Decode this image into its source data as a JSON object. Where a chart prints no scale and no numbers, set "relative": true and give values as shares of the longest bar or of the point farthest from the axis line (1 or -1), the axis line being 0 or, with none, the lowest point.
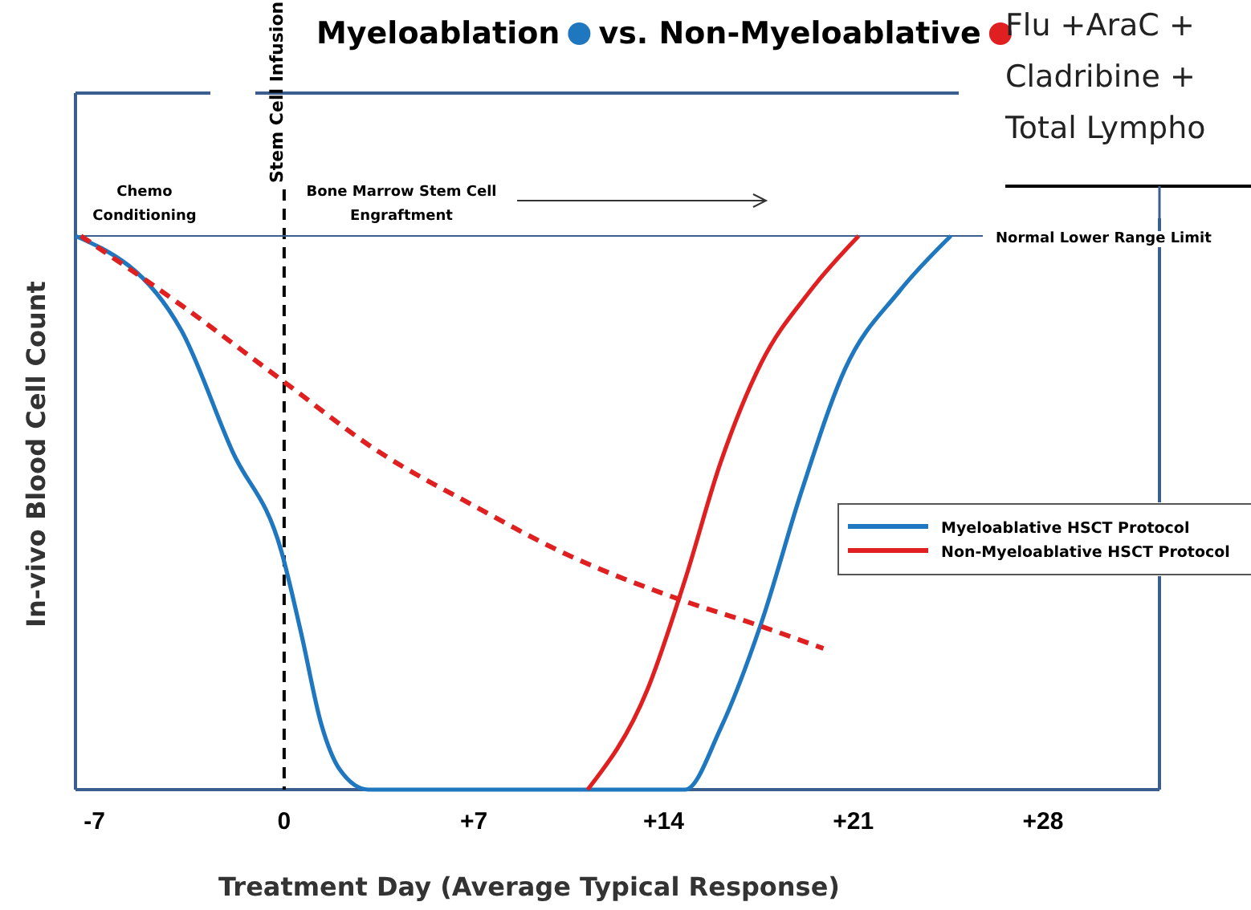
{
  "chart_data": {
    "type": "line",
    "title": "Myeloablation vs. Non-Myeloablative",
    "xlabel": "Treatment Day (Average Typical Response)",
    "ylabel": "In-vivo Blood Cell Count",
    "relative": true,
    "xlim": [
      -7.7,
      32.3
    ],
    "xticks": [
      -7,
      0,
      {
        "value": 7,
        "label": "+7"
      },
      {
        "value": 14,
        "label": "+14"
      },
      {
        "value": 21,
        "label": "+21"
      },
      {
        "value": 28,
        "label": "+28"
      }
    ],
    "series": [
      {
        "name": "Myeloablative HSCT Protocol",
        "color": "#1f77c0",
        "x": [
          -7.7,
          -3.8,
          -1.9,
          -0.1,
          0.64,
          1.36,
          2.07,
          3.1,
          14.8,
          16.1,
          17.6,
          19.1,
          20.7,
          22.7,
          24.6
        ],
        "values": [
          1,
          0.83,
          0.61,
          0.43,
          0.28,
          0.12,
          0.035,
          0,
          0,
          0.11,
          0.3,
          0.54,
          0.76,
          0.9,
          1
        ]
      },
      {
        "name": "Non-Myeloablative HSCT Protocol",
        "color": "#e02020",
        "x": [
          11.2,
          13.4,
          14.8,
          16.1,
          17.6,
          19.4,
          21.2
        ],
        "values": [
          0,
          0.18,
          0.38,
          0.59,
          0.77,
          0.9,
          1
        ]
      },
      {
        "color": "#e02020",
        "line_style": "dashed",
        "x": [
          -7.5,
          -3.8,
          -0.1,
          3.5,
          7.1,
          10.2,
          14.8,
          17.3,
          19.9
        ],
        "values": [
          1,
          0.875,
          0.74,
          0.61,
          0.51,
          0.43,
          0.34,
          0.3,
          0.255
        ]
      }
    ],
    "ref_lines": [
      {
        "axis": "x",
        "value": 0,
        "label": "Stem Cell Infusion",
        "color": "#000000",
        "line_style": "dashed"
      },
      {
        "axis": "y",
        "value": 1,
        "label": "Normal Lower Range Limit",
        "color": "#3a5f8f",
        "line_style": "solid"
      }
    ],
    "annotations": [
      "Chemo Conditioning",
      "Bone Marrow Stem Cell Engraftment",
      "Flu +AraC +",
      "Cladribine +",
      "Total Lympho"
    ],
    "legend": "right",
    "grid": false
  }
}
